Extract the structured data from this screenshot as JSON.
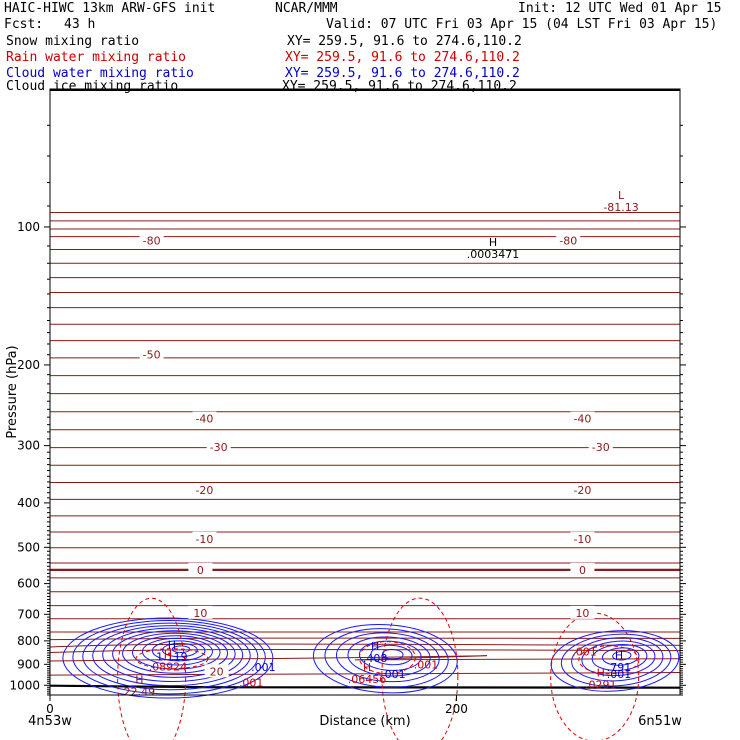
{
  "header": {
    "title": "HAIC-HIWC 13km ARW-GFS init",
    "org": "NCAR/MMM",
    "init": "Init: 12 UTC Wed 01 Apr 15",
    "fcst_label": "Fcst:",
    "fcst_value": "43 h",
    "valid": "Valid: 07 UTC Fri 03 Apr 15 (04 LST Fri 03 Apr 15)",
    "fields": [
      {
        "name": "Snow mixing ratio",
        "xy": "XY= 259.5, 91.6 to 274.6,110.2",
        "color": "#000000"
      },
      {
        "name": "Rain water mixing ratio",
        "xy": "XY= 259.5, 91.6 to 274.6,110.2",
        "color": "#cc0000"
      },
      {
        "name": "Cloud water mixing ratio",
        "xy": "XY= 259.5, 91.6 to 274.6,110.2",
        "color": "#0000cc"
      },
      {
        "name": "Cloud ice mixing ratio",
        "xy": "XY= 259.5, 91.6 to 274.6,110.2",
        "color": "#000000"
      }
    ]
  },
  "chart_data": {
    "type": "line",
    "ylabel": "Pressure (hPa)",
    "xlabel": "Distance (km)",
    "left_location": "4n53w",
    "right_location": "6n51w",
    "x_ticks": [
      0,
      200
    ],
    "x_tick_labels": [
      "0",
      "200"
    ],
    "xlim": [
      0,
      310
    ],
    "y_ticks": [
      100,
      200,
      300,
      400,
      500,
      600,
      700,
      800,
      900,
      1000
    ],
    "y_tick_labels": [
      "100",
      "200",
      "300",
      "400",
      "500",
      "600",
      "700",
      "800",
      "900",
      "1000"
    ],
    "ylim": [
      1050,
      50
    ],
    "y_scale": "log-pressure",
    "temperature_isotherm_color": "#8b1a1a",
    "isotherm_labels": [
      {
        "value": "-80",
        "x": 50,
        "p": 107
      },
      {
        "value": "-80",
        "x": 255,
        "p": 107
      },
      {
        "value": "-50",
        "x": 50,
        "p": 190
      },
      {
        "value": "-40",
        "x": 76,
        "p": 262
      },
      {
        "value": "-40",
        "x": 262,
        "p": 262
      },
      {
        "value": "-30",
        "x": 83,
        "p": 302
      },
      {
        "value": "-30",
        "x": 271,
        "p": 302
      },
      {
        "value": "-20",
        "x": 76,
        "p": 375
      },
      {
        "value": "-20",
        "x": 262,
        "p": 375
      },
      {
        "value": "-10",
        "x": 76,
        "p": 479
      },
      {
        "value": "-10",
        "x": 262,
        "p": 479
      },
      {
        "value": "0",
        "x": 74,
        "p": 560
      },
      {
        "value": "0",
        "x": 262,
        "p": 560
      },
      {
        "value": "10",
        "x": 74,
        "p": 695
      },
      {
        "value": "10",
        "x": 262,
        "p": 695
      },
      {
        "value": "20",
        "x": 82,
        "p": 932
      }
    ],
    "extrema": [
      {
        "kind": "L",
        "value": "-81.13",
        "x": 281,
        "p": 87,
        "color": "#8b1a1a"
      },
      {
        "kind": "H",
        "value": ".0003471",
        "x": 218,
        "p": 110,
        "color": "#000000"
      },
      {
        "kind": "H",
        "value": "1.119",
        "x": 60,
        "p": 832,
        "color": "#0000cc"
      },
      {
        "kind": "H",
        "value": ".08924",
        "x": 58,
        "p": 874,
        "color": "#cc0000"
      },
      {
        "kind": "H",
        "value": ".408",
        "x": 160,
        "p": 838,
        "color": "#0000cc"
      },
      {
        "kind": "H",
        "value": ".06456",
        "x": 156,
        "p": 930,
        "color": "#cc0000"
      },
      {
        "kind": "H",
        "value": ".791",
        "x": 280,
        "p": 876,
        "color": "#0000cc"
      },
      {
        "kind": "H",
        "value": ".0291",
        "x": 271,
        "p": 956,
        "color": "#cc0000"
      },
      {
        "kind": "H",
        "value": "22.49",
        "x": 44,
        "p": 990,
        "color": "#8b1a1a"
      }
    ],
    "contour_labels": [
      {
        "value": ".001",
        "x": 105,
        "p": 930,
        "color": "#0000cc"
      },
      {
        "value": ".001",
        "x": 185,
        "p": 920,
        "color": "#cc0000"
      },
      {
        "value": ".001",
        "x": 169,
        "p": 965,
        "color": "#0000cc"
      },
      {
        "value": ".001",
        "x": 263,
        "p": 862,
        "color": "#cc0000"
      },
      {
        "value": ".001",
        "x": 280,
        "p": 965,
        "color": "#0000cc"
      },
      {
        "value": ".001",
        "x": 99,
        "p": 1005,
        "color": "#cc0000"
      }
    ]
  }
}
